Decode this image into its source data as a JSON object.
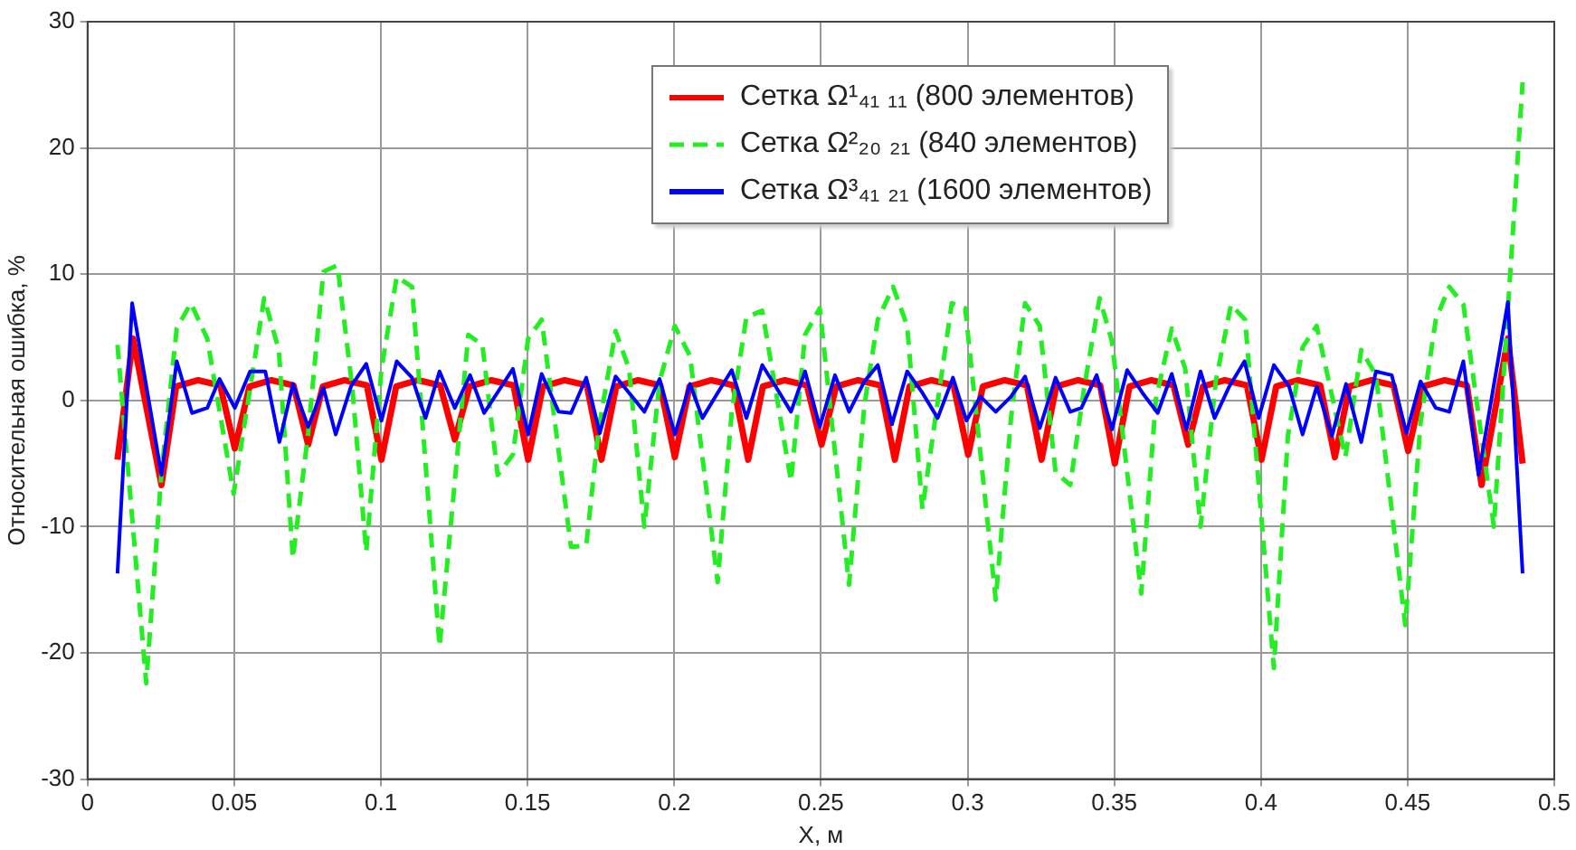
{
  "chart_data": {
    "type": "line",
    "xlabel": "X, м",
    "ylabel": "Относительная ошибка, %",
    "xlim": [
      0,
      0.5
    ],
    "ylim": [
      -30,
      30
    ],
    "xticks": [
      0,
      0.05,
      0.1,
      0.15,
      0.2,
      0.25,
      0.3,
      0.35,
      0.4,
      0.45,
      0.5
    ],
    "yticks": [
      -30,
      -20,
      -10,
      0,
      10,
      20,
      30
    ],
    "grid": true,
    "legend": "top",
    "series": [
      {
        "name": "Сетка Ω¹₄₁ ₁₁ (800 элементов)",
        "color": "#ff0000",
        "line_style": "solid",
        "x": [
          0.0102,
          0.0155,
          0.0252,
          0.0302,
          0.0377,
          0.0452,
          0.0502,
          0.0552,
          0.0627,
          0.0702,
          0.0752,
          0.0802,
          0.0877,
          0.0952,
          0.1002,
          0.1052,
          0.1127,
          0.1202,
          0.1252,
          0.1302,
          0.1377,
          0.1452,
          0.1502,
          0.1552,
          0.1627,
          0.1702,
          0.1752,
          0.1802,
          0.1877,
          0.1952,
          0.2002,
          0.2052,
          0.2127,
          0.2202,
          0.2252,
          0.2302,
          0.2377,
          0.2452,
          0.2502,
          0.2552,
          0.2627,
          0.2702,
          0.2752,
          0.2802,
          0.2877,
          0.2952,
          0.3002,
          0.3052,
          0.3127,
          0.3202,
          0.3252,
          0.3302,
          0.3377,
          0.3452,
          0.3502,
          0.3552,
          0.3627,
          0.3702,
          0.3752,
          0.3802,
          0.3877,
          0.3952,
          0.4002,
          0.4052,
          0.4127,
          0.4202,
          0.4252,
          0.4302,
          0.4377,
          0.4452,
          0.4502,
          0.4552,
          0.4627,
          0.4702,
          0.4752,
          0.4842,
          0.4892
        ],
        "values": [
          -4.7,
          4.9,
          -6.7,
          1.1,
          1.6,
          1.2,
          -3.8,
          1.1,
          1.6,
          1.2,
          -3.5,
          1.1,
          1.6,
          1.2,
          -4.7,
          1.1,
          1.6,
          1.2,
          -3.1,
          1.1,
          1.6,
          1.2,
          -4.7,
          1.1,
          1.6,
          1.2,
          -4.7,
          1.1,
          1.6,
          1.2,
          -4.5,
          1.1,
          1.6,
          1.2,
          -4.7,
          1.1,
          1.6,
          1.2,
          -3.5,
          1.1,
          1.6,
          1.2,
          -4.7,
          1.1,
          1.6,
          1.2,
          -4.3,
          1.1,
          1.6,
          1.2,
          -4.7,
          1.1,
          1.6,
          1.2,
          -5.0,
          1.1,
          1.6,
          1.2,
          -3.5,
          1.1,
          1.6,
          1.2,
          -4.7,
          1.1,
          1.6,
          1.2,
          -4.5,
          1.1,
          1.6,
          1.2,
          -4.0,
          1.1,
          1.6,
          1.2,
          -6.7,
          4.9,
          -5.0
        ]
      },
      {
        "name": "Сетка Ω²₂₀ ₂₁ (840 элементов)",
        "color": "#22ee22",
        "line_style": "dashed",
        "x": [
          0.0102,
          0.02,
          0.0252,
          0.0304,
          0.0352,
          0.0408,
          0.0498,
          0.0602,
          0.0652,
          0.07,
          0.0752,
          0.0804,
          0.0852,
          0.0902,
          0.095,
          0.1002,
          0.1054,
          0.1106,
          0.12,
          0.1298,
          0.1346,
          0.1398,
          0.145,
          0.1502,
          0.1548,
          0.1648,
          0.17,
          0.1742,
          0.18,
          0.1846,
          0.1898,
          0.195,
          0.2002,
          0.2054,
          0.2148,
          0.2196,
          0.2246,
          0.23,
          0.2398,
          0.2446,
          0.2496,
          0.2596,
          0.2648,
          0.2694,
          0.2746,
          0.2794,
          0.2846,
          0.2946,
          0.2992,
          0.3096,
          0.3148,
          0.3196,
          0.3246,
          0.33,
          0.335,
          0.3398,
          0.345,
          0.3492,
          0.3592,
          0.3642,
          0.3696,
          0.3742,
          0.3794,
          0.3846,
          0.3898,
          0.3946,
          0.4044,
          0.4092,
          0.4142,
          0.419,
          0.4288,
          0.4342,
          0.4392,
          0.4492,
          0.4544,
          0.4596,
          0.4642,
          0.469,
          0.4794,
          0.4892
        ],
        "values": [
          4.4,
          -22.4,
          -5.7,
          5.7,
          7.7,
          4.9,
          -7.4,
          8.1,
          4.0,
          -12.5,
          -2.6,
          10.2,
          10.7,
          1.1,
          -12.0,
          2.5,
          9.8,
          9.0,
          -19.5,
          5.2,
          4.4,
          -5.9,
          -4.3,
          4.9,
          6.4,
          -11.6,
          -11.5,
          -2.3,
          5.5,
          2.5,
          -10.0,
          1.5,
          5.9,
          3.5,
          -14.4,
          -0.9,
          6.6,
          7.1,
          -6.4,
          5.2,
          7.3,
          -14.6,
          -0.4,
          6.4,
          9.0,
          5.9,
          -8.6,
          7.7,
          7.3,
          -15.8,
          -1.4,
          7.7,
          5.9,
          -5.7,
          -6.7,
          1.1,
          8.1,
          4.7,
          -15.3,
          0.1,
          5.7,
          2.5,
          -10.0,
          1.5,
          7.6,
          6.4,
          -21.2,
          -2.8,
          4.2,
          5.9,
          -4.5,
          4.0,
          2.0,
          -17.8,
          -1.8,
          6.4,
          9.0,
          7.6,
          -10.0,
          25.2
        ]
      },
      {
        "name": "Сетка Ω³₄₁ ₂₁ (1600 элементов)",
        "color": "#0000ff",
        "line_style": "solid",
        "x": [
          0.0102,
          0.0152,
          0.0252,
          0.0304,
          0.0356,
          0.0408,
          0.045,
          0.0502,
          0.0554,
          0.0606,
          0.0654,
          0.07,
          0.0752,
          0.0804,
          0.0846,
          0.0898,
          0.095,
          0.1002,
          0.1054,
          0.1106,
          0.1152,
          0.12,
          0.1252,
          0.1304,
          0.1352,
          0.145,
          0.1502,
          0.1548,
          0.1606,
          0.1648,
          0.17,
          0.1746,
          0.18,
          0.1846,
          0.1898,
          0.195,
          0.2002,
          0.2054,
          0.2096,
          0.2148,
          0.2196,
          0.2246,
          0.23,
          0.2346,
          0.2398,
          0.2446,
          0.2496,
          0.2548,
          0.2596,
          0.2648,
          0.2694,
          0.2742,
          0.2794,
          0.2846,
          0.2898,
          0.295,
          0.2996,
          0.3044,
          0.3096,
          0.3148,
          0.3196,
          0.3246,
          0.33,
          0.335,
          0.3388,
          0.344,
          0.3492,
          0.3544,
          0.3596,
          0.3648,
          0.3696,
          0.3746,
          0.3794,
          0.3842,
          0.3892,
          0.3944,
          0.3992,
          0.4044,
          0.4096,
          0.4142,
          0.419,
          0.4242,
          0.429,
          0.4342,
          0.4392,
          0.4446,
          0.4496,
          0.4544,
          0.4596,
          0.4642,
          0.469,
          0.4742,
          0.4842,
          0.4892
        ],
        "values": [
          -13.7,
          7.7,
          -5.9,
          3.1,
          -1.0,
          -0.6,
          1.7,
          -0.6,
          2.3,
          2.3,
          -3.3,
          1.3,
          -2.1,
          1.0,
          -2.7,
          1.1,
          2.9,
          -1.6,
          3.1,
          1.8,
          -1.4,
          2.3,
          -0.6,
          2.0,
          -1.0,
          2.5,
          -2.7,
          2.1,
          -0.9,
          -1.0,
          1.8,
          -2.6,
          1.9,
          0.6,
          -0.9,
          1.7,
          -2.7,
          1.3,
          -1.4,
          0.6,
          2.4,
          -1.4,
          2.8,
          1.1,
          -0.9,
          2.3,
          -2.1,
          2.0,
          -0.9,
          1.5,
          2.8,
          -1.9,
          2.3,
          0.6,
          -1.4,
          1.8,
          -1.6,
          0.3,
          -0.9,
          0.3,
          1.9,
          -2.2,
          1.8,
          -0.9,
          -0.6,
          2.0,
          -2.3,
          2.4,
          0.6,
          -1.0,
          2.1,
          -2.3,
          2.3,
          -1.4,
          1.1,
          3.1,
          -1.4,
          2.8,
          1.1,
          -2.7,
          1.1,
          -2.8,
          1.3,
          -3.3,
          2.3,
          2.0,
          -2.6,
          1.5,
          -0.6,
          -0.9,
          3.1,
          -5.9,
          7.8,
          -13.7
        ]
      }
    ]
  }
}
